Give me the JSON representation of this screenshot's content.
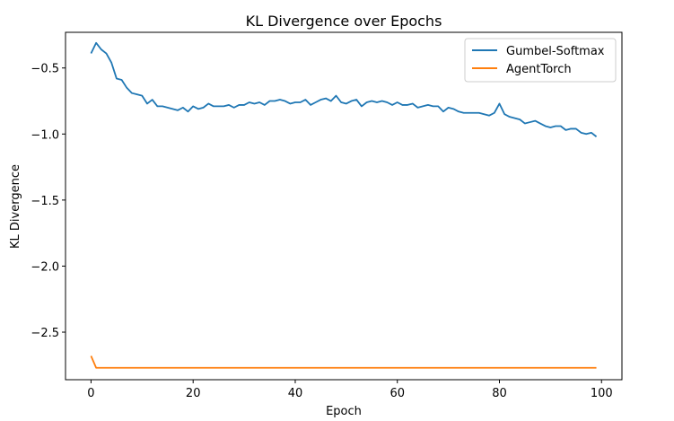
{
  "chart_data": {
    "type": "line",
    "title": "KL Divergence over Epochs",
    "xlabel": "Epoch",
    "ylabel": "KL Divergence",
    "xlim": [
      -5,
      104
    ],
    "ylim": [
      -2.86,
      -0.23
    ],
    "xticks": [
      0,
      20,
      40,
      60,
      80,
      100
    ],
    "xtick_labels": [
      "0",
      "20",
      "40",
      "60",
      "80",
      "100"
    ],
    "yticks": [
      -0.5,
      -1.0,
      -1.5,
      -2.0,
      -2.5
    ],
    "ytick_labels": [
      "−0.5",
      "−1.0",
      "−1.5",
      "−2.0",
      "−2.5"
    ],
    "grid": false,
    "legend_position": "top-right",
    "series": [
      {
        "name": "Gumbel-Softmax",
        "color": "#1f77b4",
        "values": [
          -0.39,
          -0.31,
          -0.36,
          -0.39,
          -0.46,
          -0.58,
          -0.59,
          -0.65,
          -0.69,
          -0.7,
          -0.71,
          -0.77,
          -0.74,
          -0.79,
          -0.79,
          -0.8,
          -0.81,
          -0.82,
          -0.8,
          -0.83,
          -0.79,
          -0.81,
          -0.8,
          -0.77,
          -0.79,
          -0.79,
          -0.79,
          -0.78,
          -0.8,
          -0.78,
          -0.78,
          -0.76,
          -0.77,
          -0.76,
          -0.78,
          -0.75,
          -0.75,
          -0.74,
          -0.75,
          -0.77,
          -0.76,
          -0.76,
          -0.74,
          -0.78,
          -0.76,
          -0.74,
          -0.73,
          -0.75,
          -0.71,
          -0.76,
          -0.77,
          -0.75,
          -0.74,
          -0.79,
          -0.76,
          -0.75,
          -0.76,
          -0.75,
          -0.76,
          -0.78,
          -0.76,
          -0.78,
          -0.78,
          -0.77,
          -0.8,
          -0.79,
          -0.78,
          -0.79,
          -0.79,
          -0.83,
          -0.8,
          -0.81,
          -0.83,
          -0.84,
          -0.84,
          -0.84,
          -0.84,
          -0.85,
          -0.86,
          -0.84,
          -0.77,
          -0.85,
          -0.87,
          -0.88,
          -0.89,
          -0.92,
          -0.91,
          -0.9,
          -0.92,
          -0.94,
          -0.95,
          -0.94,
          -0.94,
          -0.97,
          -0.96,
          -0.96,
          -0.99,
          -1.0,
          -0.99,
          -1.02
        ]
      },
      {
        "name": "AgentTorch",
        "color": "#ff7f0e",
        "values": [
          -2.68,
          -2.77,
          -2.77,
          -2.77,
          -2.77,
          -2.77,
          -2.77,
          -2.77,
          -2.77,
          -2.77,
          -2.77,
          -2.77,
          -2.77,
          -2.77,
          -2.77,
          -2.77,
          -2.77,
          -2.77,
          -2.77,
          -2.77,
          -2.77,
          -2.77,
          -2.77,
          -2.77,
          -2.77,
          -2.77,
          -2.77,
          -2.77,
          -2.77,
          -2.77,
          -2.77,
          -2.77,
          -2.77,
          -2.77,
          -2.77,
          -2.77,
          -2.77,
          -2.77,
          -2.77,
          -2.77,
          -2.77,
          -2.77,
          -2.77,
          -2.77,
          -2.77,
          -2.77,
          -2.77,
          -2.77,
          -2.77,
          -2.77,
          -2.77,
          -2.77,
          -2.77,
          -2.77,
          -2.77,
          -2.77,
          -2.77,
          -2.77,
          -2.77,
          -2.77,
          -2.77,
          -2.77,
          -2.77,
          -2.77,
          -2.77,
          -2.77,
          -2.77,
          -2.77,
          -2.77,
          -2.77,
          -2.77,
          -2.77,
          -2.77,
          -2.77,
          -2.77,
          -2.77,
          -2.77,
          -2.77,
          -2.77,
          -2.77,
          -2.77,
          -2.77,
          -2.77,
          -2.77,
          -2.77,
          -2.77,
          -2.77,
          -2.77,
          -2.77,
          -2.77,
          -2.77,
          -2.77,
          -2.77,
          -2.77,
          -2.77,
          -2.77,
          -2.77,
          -2.77,
          -2.77,
          -2.77
        ]
      }
    ]
  }
}
